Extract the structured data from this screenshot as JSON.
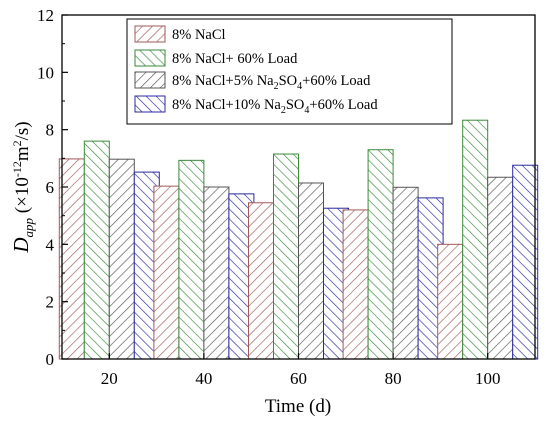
{
  "chart_data": {
    "type": "bar",
    "categories": [
      "20",
      "40",
      "60",
      "80",
      "100"
    ],
    "series": [
      {
        "name": "8% NaCl",
        "values": [
          6.98,
          6.03,
          5.45,
          5.2,
          4.0
        ],
        "color": "#a05a5a",
        "pattern": "hatch-right"
      },
      {
        "name": "8% NaCl+ 60% Load",
        "values": [
          7.6,
          6.93,
          7.15,
          7.3,
          8.33
        ],
        "color": "#3a8a3a",
        "pattern": "hatch-left"
      },
      {
        "name": "8% NaCl+5% Na2SO4+60% Load",
        "values": [
          6.97,
          6.0,
          6.14,
          5.99,
          6.34
        ],
        "color": "#555555",
        "pattern": "hatch-right"
      },
      {
        "name": "8% NaCl+10% Na2SO4+60% Load",
        "values": [
          6.52,
          5.76,
          5.26,
          5.62,
          6.76
        ],
        "color": "#2a2aa0",
        "pattern": "hatch-left"
      }
    ],
    "xlabel": "Time (d)",
    "ylabel": "Dapp (×10-12m2/s)",
    "ylim": [
      0,
      12
    ],
    "yticks": [
      "0",
      "2",
      "4",
      "6",
      "8",
      "10",
      "12"
    ],
    "grid": false,
    "legend": "top-left"
  }
}
